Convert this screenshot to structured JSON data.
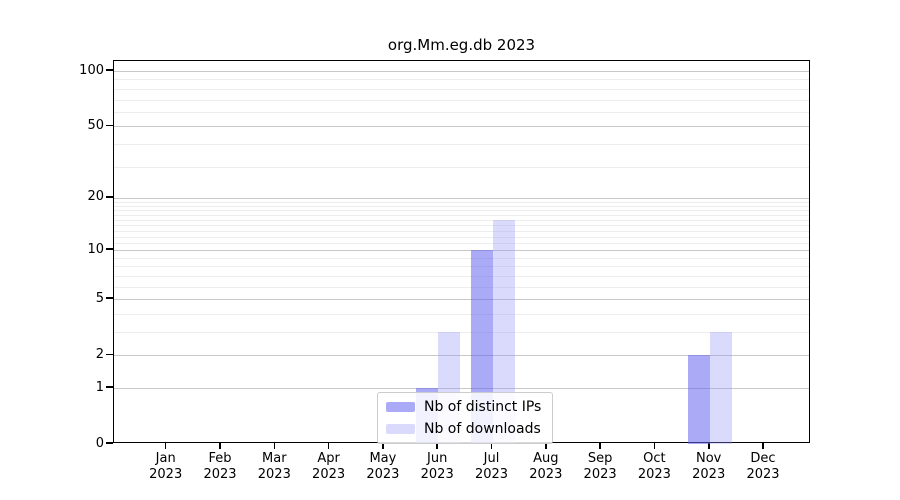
{
  "chart_data": {
    "type": "bar",
    "title": "org.Mm.eg.db 2023",
    "categories": [
      "Jan 2023",
      "Feb 2023",
      "Mar 2023",
      "Apr 2023",
      "May 2023",
      "Jun 2023",
      "Jul 2023",
      "Aug 2023",
      "Sep 2023",
      "Oct 2023",
      "Nov 2023",
      "Dec 2023"
    ],
    "series": [
      {
        "name": "Nb of distinct IPs",
        "color": "rgba(100,100,240,0.55)",
        "values": [
          0,
          0,
          0,
          0,
          0,
          1,
          10,
          0,
          0,
          0,
          2,
          0
        ]
      },
      {
        "name": "Nb of downloads",
        "color": "rgba(150,150,245,0.35)",
        "values": [
          0,
          0,
          0,
          0,
          0,
          3,
          15,
          0,
          0,
          0,
          3,
          0
        ]
      }
    ],
    "y_axis": {
      "scale": "log1p",
      "range": [
        0,
        100
      ],
      "ticks": [
        0,
        1,
        2,
        5,
        10,
        20,
        50,
        100
      ],
      "minor_gridlines": [
        3,
        4,
        6,
        7,
        8,
        9,
        11,
        12,
        13,
        14,
        15,
        16,
        17,
        18,
        19,
        30,
        40,
        60,
        70,
        80,
        90
      ]
    },
    "x_axis": {
      "label_line2": "2023"
    },
    "legend": {
      "position": "bottom-center"
    },
    "grid": true,
    "colors": {
      "major_grid": "#c8c8c8",
      "minor_grid": "#ededed",
      "axis": "#000000"
    }
  }
}
